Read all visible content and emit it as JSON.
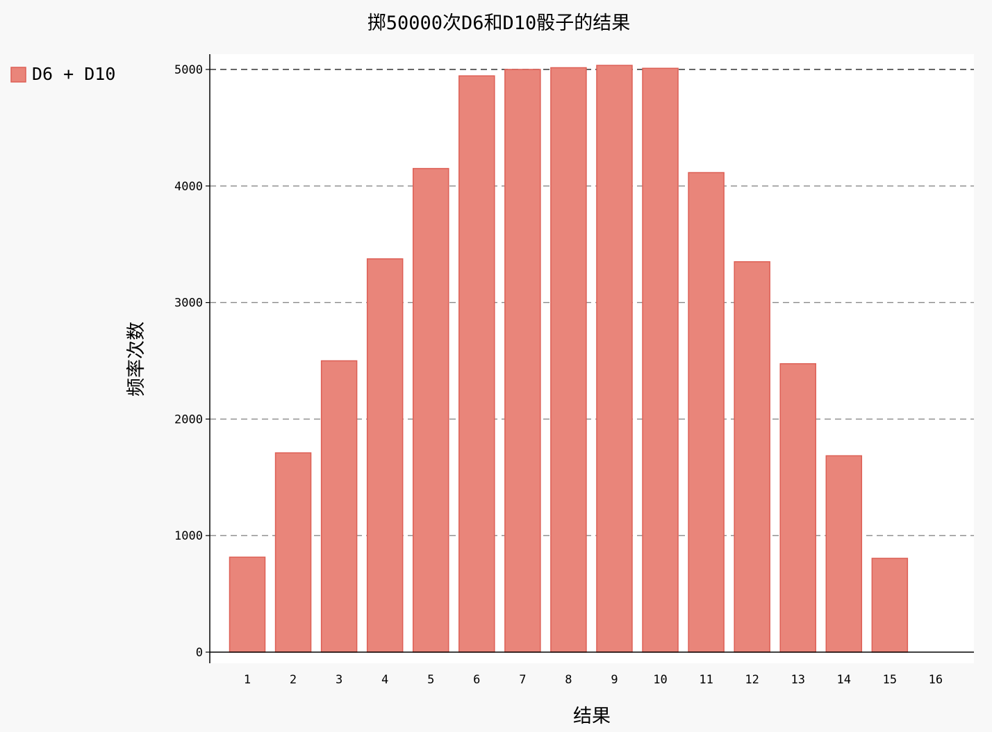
{
  "chart_data": {
    "type": "bar",
    "title": "掷50000次D6和D10骰子的结果",
    "xlabel": "结果",
    "ylabel": "频率次数",
    "categories": [
      "1",
      "2",
      "3",
      "4",
      "5",
      "6",
      "7",
      "8",
      "9",
      "10",
      "11",
      "12",
      "13",
      "14",
      "15",
      "16"
    ],
    "series": [
      {
        "name": "D6 + D10",
        "values": [
          815,
          1710,
          2500,
          3375,
          4150,
          4945,
          5000,
          5015,
          5035,
          5010,
          4115,
          3350,
          2475,
          1685,
          805,
          0
        ],
        "color": "#e9857a",
        "stroke": "#dd5f55"
      }
    ],
    "ylim": [
      0,
      5000
    ],
    "yticks": [
      0,
      1000,
      2000,
      3000,
      4000,
      5000
    ],
    "grid": true,
    "legend_position": "top-left"
  }
}
